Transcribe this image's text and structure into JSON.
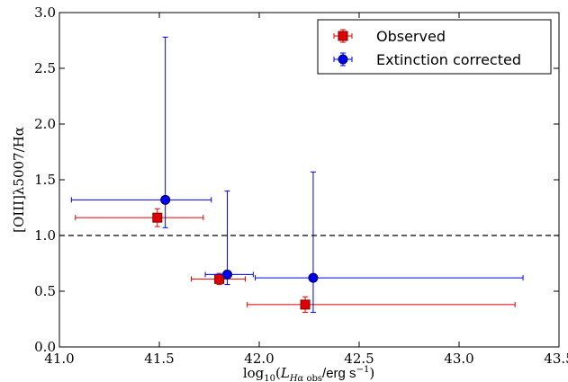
{
  "chart_data": {
    "type": "scatter",
    "xlabel": "log₁₀(L_Hα obs/erg s⁻¹)",
    "ylabel": "[OIII]λ5007/Hα",
    "xlim": [
      41.0,
      43.5
    ],
    "ylim": [
      0.0,
      3.0
    ],
    "x_ticks": [
      "41.0",
      "41.5",
      "42.0",
      "42.5",
      "43.0",
      "43.5"
    ],
    "y_ticks": [
      "0.0",
      "0.5",
      "1.0",
      "1.5",
      "2.0",
      "2.5",
      "3.0"
    ],
    "reference_line": {
      "y": 1.0,
      "style": "dashed"
    },
    "legend_position": "top-right",
    "series": [
      {
        "name": "Observed",
        "marker": "square",
        "color": "#dd0000",
        "edge_color": "#800000",
        "points": [
          {
            "x": 41.49,
            "y": 1.16,
            "xerr": [
              0.41,
              0.23
            ],
            "yerr": [
              0.08,
              0.08
            ]
          },
          {
            "x": 41.8,
            "y": 0.61,
            "xerr": [
              0.14,
              0.13
            ],
            "yerr": [
              0.05,
              0.05
            ]
          },
          {
            "x": 42.23,
            "y": 0.38,
            "xerr": [
              0.29,
              1.05
            ],
            "yerr": [
              0.07,
              0.07
            ]
          }
        ]
      },
      {
        "name": "Extinction corrected",
        "marker": "circle",
        "color": "#0000ee",
        "edge_color": "#000066",
        "points": [
          {
            "x": 41.53,
            "y": 1.32,
            "xerr": [
              0.47,
              0.23
            ],
            "yerr": [
              0.25,
              1.46
            ]
          },
          {
            "x": 41.84,
            "y": 0.65,
            "xerr": [
              0.11,
              0.13
            ],
            "yerr": [
              0.09,
              0.75
            ]
          },
          {
            "x": 42.27,
            "y": 0.62,
            "xerr": [
              0.29,
              1.05
            ],
            "yerr": [
              0.31,
              0.95
            ]
          }
        ]
      }
    ]
  }
}
